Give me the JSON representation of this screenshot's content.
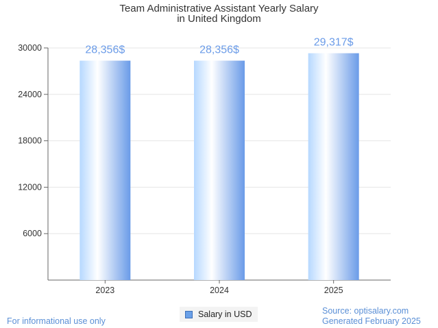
{
  "chart_data": {
    "type": "bar",
    "title": [
      "Team Administrative Assistant Yearly Salary",
      "in United Kingdom"
    ],
    "categories": [
      "2023",
      "2024",
      "2025"
    ],
    "series": [
      {
        "name": "Salary in USD",
        "values": [
          28356,
          28356,
          29317
        ]
      }
    ],
    "data_labels": [
      "28,356$",
      "28,356$",
      "29,317$"
    ],
    "ylim": [
      0,
      30000
    ],
    "yticks": [
      6000,
      12000,
      18000,
      24000,
      30000
    ],
    "grid": true,
    "legend_position": "bottom",
    "colors": {
      "bar_light": "#ffffff",
      "bar_mid": "#b6d8ff",
      "bar_dark": "#6a9be8",
      "label": "#6a9be8",
      "grid": "#e6e6e6",
      "axis": "#666666"
    }
  },
  "footer": {
    "left_note": "For informational use only",
    "source": "Source: optisalary.com",
    "generated": "Generated February 2025"
  }
}
